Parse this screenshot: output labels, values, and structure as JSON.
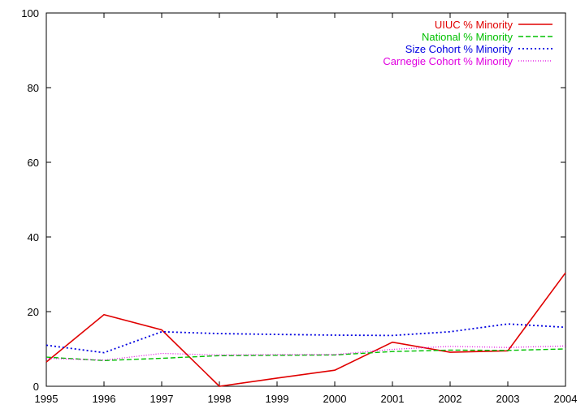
{
  "chart_data": {
    "type": "line",
    "x": [
      1995,
      1996,
      1997,
      1998,
      1999,
      2000,
      2001,
      2002,
      2003,
      2004
    ],
    "xlim": [
      1995,
      2004
    ],
    "ylim": [
      0,
      100
    ],
    "yticks": [
      0,
      20,
      40,
      60,
      80,
      100
    ],
    "xticks": [
      1995,
      1996,
      1997,
      1998,
      1999,
      2000,
      2001,
      2002,
      2003,
      2004
    ],
    "grid": false,
    "legend_position": "top-right",
    "series": [
      {
        "name": "UIUC % Minority",
        "color": "#e00000",
        "dash": "solid",
        "values": [
          6.5,
          19.2,
          15.1,
          0.0,
          2.2,
          4.3,
          11.8,
          9.1,
          9.5,
          30.4
        ]
      },
      {
        "name": "National % Minority",
        "color": "#00c000",
        "dash": "dashed",
        "values": [
          7.8,
          6.9,
          7.5,
          8.2,
          8.3,
          8.4,
          9.3,
          9.7,
          9.6,
          10.0
        ]
      },
      {
        "name": "Size Cohort % Minority",
        "color": "#0000e0",
        "dash": "dotted",
        "values": [
          11.0,
          9.0,
          14.6,
          14.1,
          13.9,
          13.7,
          13.6,
          14.6,
          16.7,
          15.8
        ]
      },
      {
        "name": "Carnegie Cohort % Minority",
        "color": "#e000e0",
        "dash": "fine-dotted",
        "values": [
          7.5,
          7.0,
          8.8,
          8.4,
          8.5,
          8.5,
          9.9,
          10.7,
          10.4,
          10.8
        ]
      }
    ]
  }
}
